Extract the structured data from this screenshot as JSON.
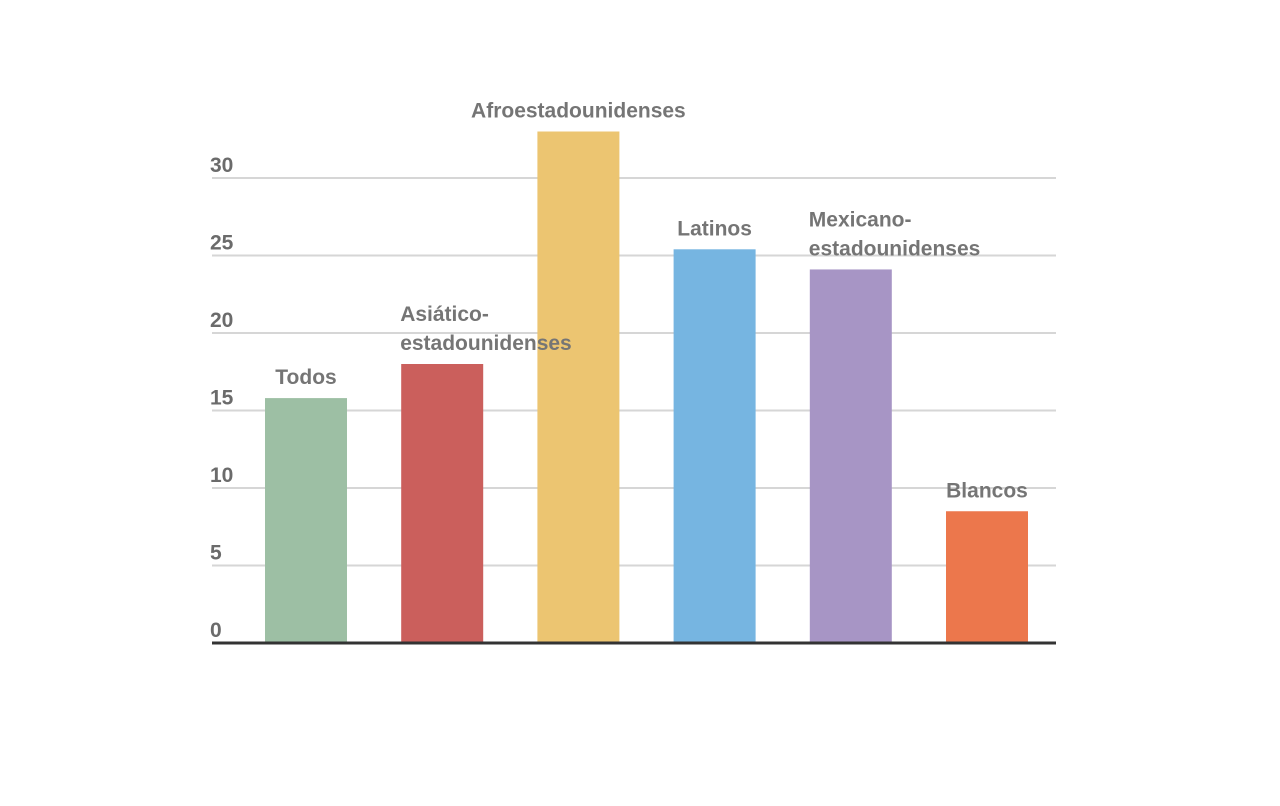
{
  "chart_data": {
    "type": "bar",
    "categories": [
      [
        "Todos"
      ],
      [
        "Asiático-",
        "estadounidenses"
      ],
      [
        "Afroestadounidenses"
      ],
      [
        "Latinos"
      ],
      [
        "Mexicano-",
        "estadounidenses"
      ],
      [
        "Blancos"
      ]
    ],
    "values": [
      15.8,
      18.0,
      33.0,
      25.4,
      24.1,
      8.5
    ],
    "colors": [
      "#9dbfa4",
      "#cb5f5c",
      "#ecc571",
      "#76b5e1",
      "#a795c5",
      "#ec774c"
    ],
    "yticks": [
      0,
      5,
      10,
      15,
      20,
      25,
      30
    ],
    "ylim": [
      0,
      33
    ],
    "grid": true,
    "legend": "none",
    "title": "",
    "xlabel": "",
    "ylabel": ""
  }
}
